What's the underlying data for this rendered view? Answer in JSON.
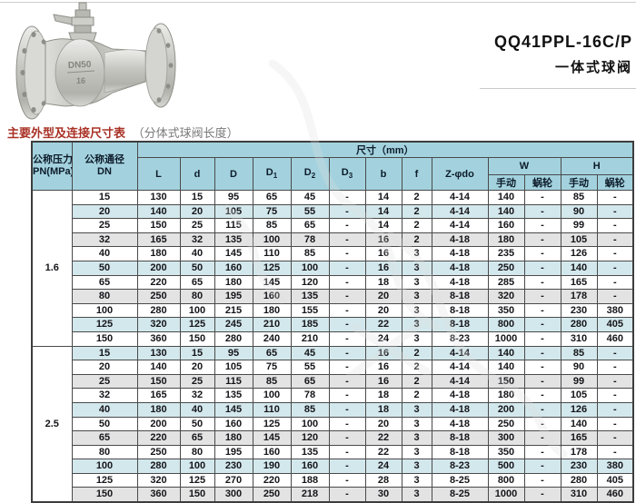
{
  "page": {
    "product_code": "QQ41PPL-16C/P",
    "product_name": "一体式球阀",
    "section_title": "主要外型及连接尺寸表",
    "section_subtitle": "（分体式球阀长度）",
    "valve_marking_line1": "DN50",
    "valve_marking_line2": "16"
  },
  "colors": {
    "header_bg": "#a3d2de",
    "stripe_blue": "#d3e8ec",
    "stripe_gray": "#e3e3e3",
    "heading_red": "#a93226",
    "border": "#4a4a4a"
  },
  "table": {
    "header": {
      "pressure_line1": "公称压力",
      "pressure_line2": "PN(MPa)",
      "dn_line1": "公称通径",
      "dn_line2": "DN",
      "size_group": "尺寸（mm）",
      "dims": [
        "L",
        "d",
        "D",
        "D1",
        "D2",
        "D3",
        "b",
        "f",
        "Z-φdo"
      ],
      "w_label": "W",
      "h_label": "H",
      "manual": "手动",
      "worm": "蜗轮"
    },
    "groups": [
      {
        "pn": "1.6",
        "rows": [
          [
            "15",
            "130",
            "15",
            "95",
            "65",
            "45",
            "-",
            "14",
            "2",
            "4-14",
            "140",
            "-",
            "85",
            "-"
          ],
          [
            "20",
            "140",
            "20",
            "105",
            "75",
            "55",
            "-",
            "14",
            "2",
            "4-14",
            "140",
            "-",
            "90",
            "-"
          ],
          [
            "25",
            "150",
            "25",
            "115",
            "85",
            "65",
            "-",
            "14",
            "2",
            "4-14",
            "160",
            "-",
            "99",
            "-"
          ],
          [
            "32",
            "165",
            "32",
            "135",
            "100",
            "78",
            "-",
            "16",
            "2",
            "4-18",
            "180",
            "-",
            "105",
            "-"
          ],
          [
            "40",
            "180",
            "40",
            "145",
            "110",
            "85",
            "-",
            "16",
            "3",
            "4-18",
            "235",
            "-",
            "126",
            "-"
          ],
          [
            "50",
            "200",
            "50",
            "160",
            "125",
            "100",
            "-",
            "16",
            "3",
            "4-18",
            "250",
            "-",
            "140",
            "-"
          ],
          [
            "65",
            "220",
            "65",
            "180",
            "145",
            "120",
            "-",
            "18",
            "3",
            "4-18",
            "285",
            "-",
            "165",
            "-"
          ],
          [
            "80",
            "250",
            "80",
            "195",
            "160",
            "135",
            "-",
            "20",
            "3",
            "8-18",
            "320",
            "-",
            "178",
            "-"
          ],
          [
            "100",
            "280",
            "100",
            "215",
            "180",
            "155",
            "-",
            "20",
            "3",
            "8-18",
            "350",
            "-",
            "230",
            "380"
          ],
          [
            "125",
            "320",
            "125",
            "245",
            "210",
            "185",
            "-",
            "22",
            "3",
            "8-18",
            "800",
            "-",
            "280",
            "405"
          ],
          [
            "150",
            "360",
            "150",
            "280",
            "240",
            "210",
            "-",
            "24",
            "3",
            "8-23",
            "1000",
            "-",
            "310",
            "460"
          ]
        ]
      },
      {
        "pn": "2.5",
        "rows": [
          [
            "15",
            "130",
            "15",
            "95",
            "65",
            "45",
            "-",
            "16",
            "2",
            "4-14",
            "140",
            "-",
            "85",
            "-"
          ],
          [
            "20",
            "140",
            "20",
            "105",
            "75",
            "55",
            "-",
            "16",
            "2",
            "4-14",
            "140",
            "-",
            "90",
            "-"
          ],
          [
            "25",
            "150",
            "25",
            "115",
            "85",
            "65",
            "-",
            "16",
            "2",
            "4-14",
            "150",
            "-",
            "99",
            "-"
          ],
          [
            "32",
            "165",
            "32",
            "135",
            "100",
            "78",
            "-",
            "18",
            "2",
            "4-18",
            "180",
            "-",
            "105",
            "-"
          ],
          [
            "40",
            "180",
            "40",
            "145",
            "110",
            "85",
            "-",
            "18",
            "3",
            "4-18",
            "200",
            "-",
            "126",
            "-"
          ],
          [
            "50",
            "200",
            "50",
            "160",
            "125",
            "100",
            "-",
            "20",
            "3",
            "4-18",
            "250",
            "-",
            "140",
            "-"
          ],
          [
            "65",
            "220",
            "65",
            "180",
            "145",
            "120",
            "-",
            "22",
            "3",
            "8-18",
            "300",
            "-",
            "165",
            "-"
          ],
          [
            "80",
            "250",
            "80",
            "195",
            "160",
            "135",
            "-",
            "22",
            "3",
            "8-18",
            "350",
            "-",
            "178",
            "-"
          ],
          [
            "100",
            "280",
            "100",
            "230",
            "190",
            "160",
            "-",
            "24",
            "3",
            "8-23",
            "500",
            "-",
            "230",
            "380"
          ],
          [
            "125",
            "320",
            "125",
            "270",
            "220",
            "188",
            "-",
            "28",
            "3",
            "8-25",
            "800",
            "-",
            "280",
            "405"
          ],
          [
            "150",
            "360",
            "150",
            "300",
            "250",
            "218",
            "-",
            "30",
            "3",
            "8-25",
            "1000",
            "-",
            "310",
            "460"
          ]
        ]
      }
    ]
  }
}
